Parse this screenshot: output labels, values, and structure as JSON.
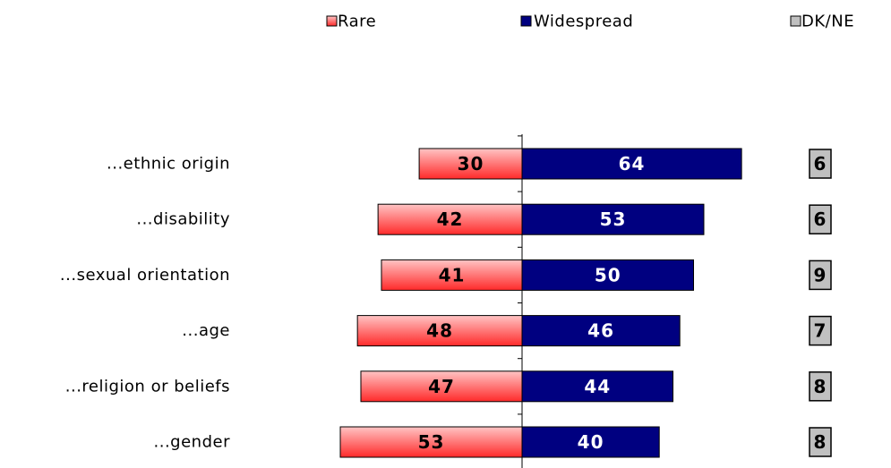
{
  "chart_data": {
    "type": "diverging-bar",
    "categories": [
      "...ethnic origin",
      "...disability",
      "...sexual orientation",
      "...age",
      "...religion or beliefs",
      "...gender"
    ],
    "series": [
      {
        "name": "Rare",
        "color": "#ff3333",
        "values": [
          30,
          42,
          41,
          48,
          47,
          53
        ]
      },
      {
        "name": "Widespread",
        "color": "#000080",
        "values": [
          64,
          53,
          50,
          46,
          44,
          40
        ]
      },
      {
        "name": "DK/NE",
        "color": "#c0c0c0",
        "values": [
          6,
          6,
          9,
          7,
          8,
          8
        ]
      }
    ]
  }
}
